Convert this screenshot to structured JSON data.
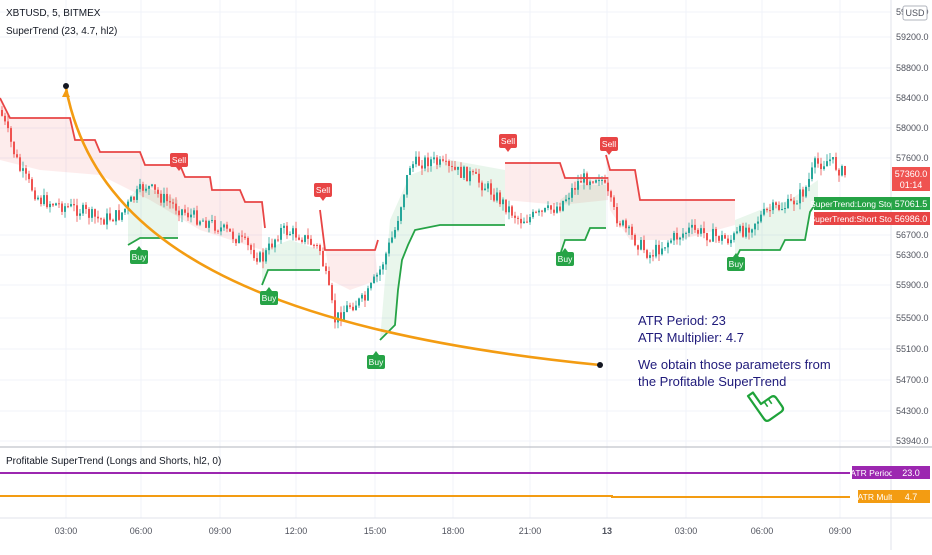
{
  "chart": {
    "symbol_title": "XBTUSD, 5, BITMEX",
    "indicator_title": "SuperTrend (23, 4.7, hl2)",
    "currency_label": "USD",
    "price_ticks": [
      "59600.0",
      "59200.0",
      "58800.0",
      "58400.0",
      "58000.0",
      "57600.0",
      "56700.0",
      "56300.0",
      "55900.0",
      "55500.0",
      "55100.0",
      "54700.0",
      "54300.0",
      "53940.0"
    ],
    "last_price": "57360.0",
    "countdown": "01:14",
    "long_stop": {
      "label": "SuperTrend:Long Stop",
      "value": "57061.5",
      "color": "#26a346"
    },
    "short_stop": {
      "label": "SuperTrend:Short Stop",
      "value": "56986.0",
      "color": "#e84545"
    },
    "signals": [
      {
        "type": "Sell",
        "label": "Sell"
      },
      {
        "type": "Sell",
        "label": "Sell"
      },
      {
        "type": "Sell",
        "label": "Sell"
      },
      {
        "type": "Sell",
        "label": "Sell"
      },
      {
        "type": "Buy",
        "label": "Buy"
      },
      {
        "type": "Buy",
        "label": "Buy"
      },
      {
        "type": "Buy",
        "label": "Buy"
      },
      {
        "type": "Buy",
        "label": "Buy"
      },
      {
        "type": "Buy",
        "label": "Buy"
      }
    ]
  },
  "annotation": {
    "line1": "ATR Period: 23",
    "line2": "ATR Multiplier: 4.7",
    "line3": "We obtain those parameters from",
    "line4": "the Profitable SuperTrend",
    "color": "#1f1a7a",
    "curve_color": "#f39c12",
    "cursor_icon": "pointing-hand-icon"
  },
  "sub_panel": {
    "title": "Profitable SuperTrend (Longs and Shorts, hl2, 0)",
    "atr_period": {
      "label": "ATR Period",
      "value": "23.0",
      "color": "#9c27b0"
    },
    "atr_mult": {
      "label": "ATR Mult",
      "value": "4.7",
      "color": "#f39c12"
    }
  },
  "time_axis": [
    "03:00",
    "06:00",
    "09:00",
    "12:00",
    "15:00",
    "18:00",
    "21:00",
    "13",
    "03:00",
    "06:00",
    "09:00"
  ]
}
